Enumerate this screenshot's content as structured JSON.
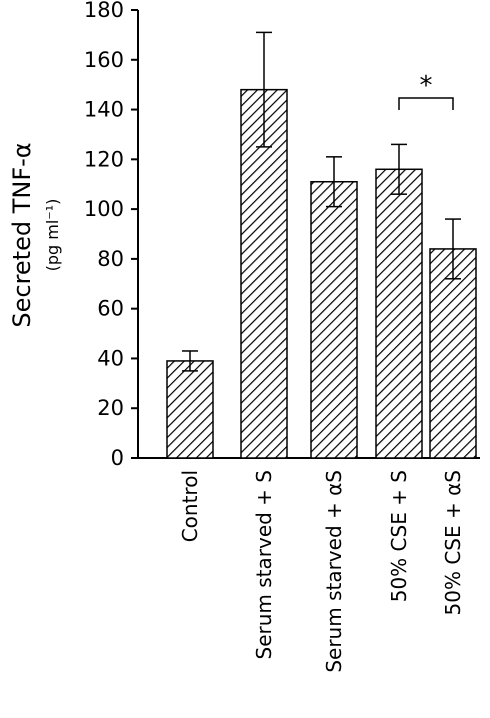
{
  "chart_data": {
    "type": "bar",
    "ylabel": "Secreted TNF-α",
    "ylabel_unit": "(pg ml⁻¹)",
    "ylim": [
      0,
      180
    ],
    "yticks": [
      0,
      20,
      40,
      60,
      80,
      100,
      120,
      140,
      160,
      180
    ],
    "categories": [
      "Control",
      "Serum starved + S",
      "Serum starved + αS",
      "50% CSE + S",
      "50% CSE + αS"
    ],
    "values": [
      39,
      148,
      111,
      116,
      84
    ],
    "error": [
      4,
      23,
      10,
      10,
      12
    ],
    "significance": [
      {
        "between": [
          3,
          4
        ],
        "label": "*"
      }
    ],
    "bar_fill": "hatched",
    "color": "#000000"
  }
}
